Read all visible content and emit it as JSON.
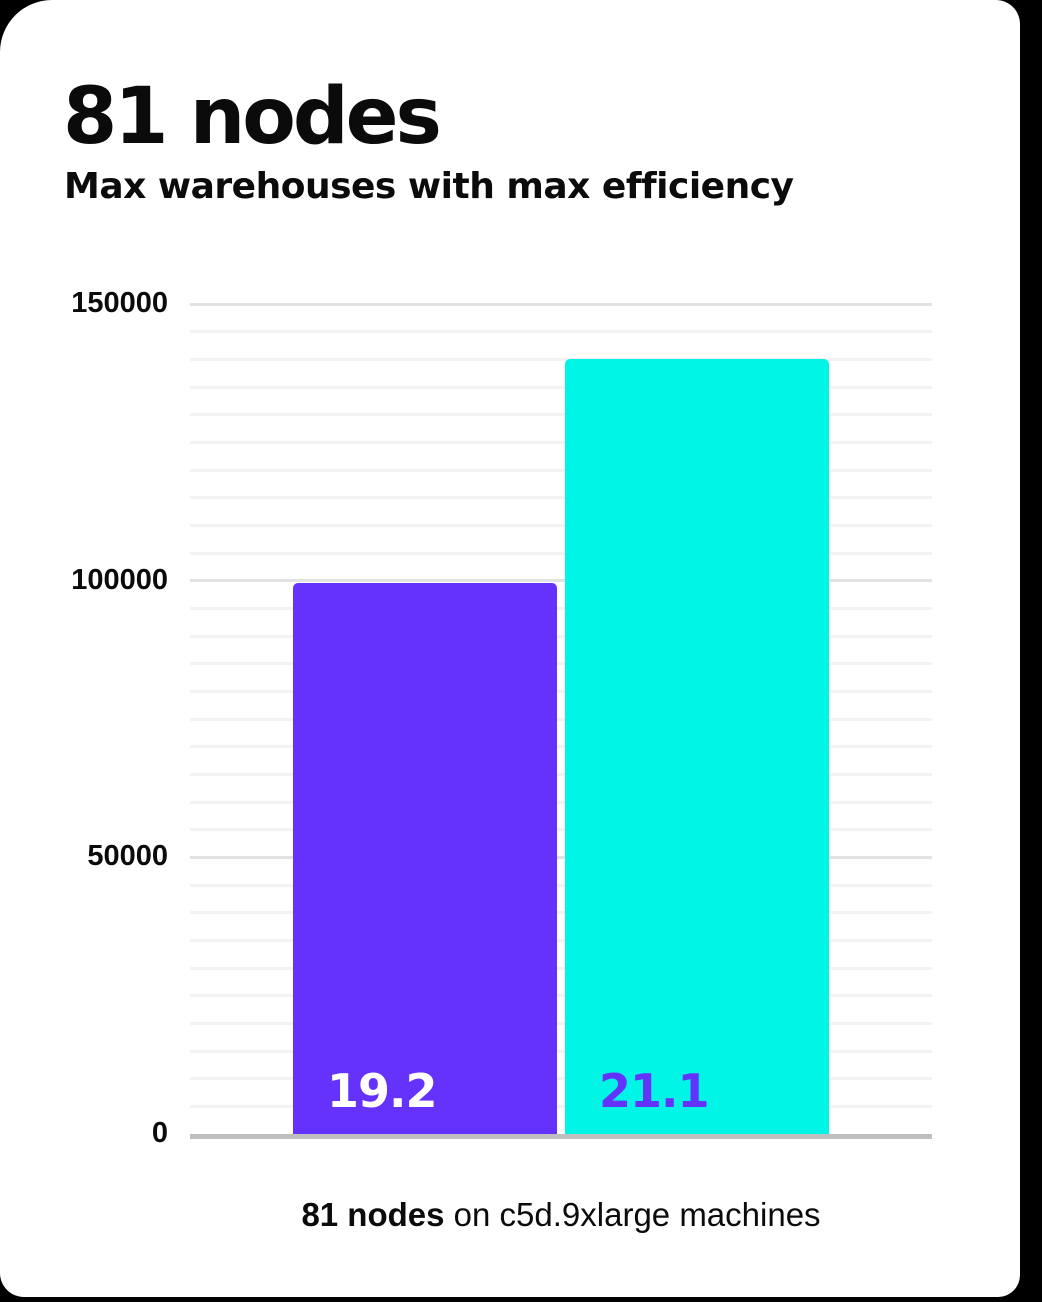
{
  "page": {
    "background": "#000000",
    "card_background": "#FFFFFF"
  },
  "card": {
    "title": "81 nodes",
    "subtitle": "Max warehouses with max efficiency",
    "caption": {
      "bold": "81 nodes",
      "rest": " on c5d.9xlarge machines"
    }
  },
  "chart_data": {
    "type": "bar",
    "title": "81 nodes",
    "subtitle": "Max warehouses with max efficiency",
    "caption": "81 nodes on c5d.9xlarge machines",
    "categories": [
      "19.2",
      "21.1"
    ],
    "values": [
      99500,
      140000
    ],
    "xlabel": "",
    "ylabel": "",
    "ylim": [
      0,
      150000
    ],
    "ytick_major": 50000,
    "ytick_minor": 5000,
    "ytick_labels": [
      "150000",
      "100000",
      "50000",
      "0"
    ],
    "grid": "horizontal, minor lines every 5000, major lines every 50000",
    "legend": "none",
    "value_labels_inside_bars": true,
    "bars": [
      {
        "label": "19.2",
        "value": 99500,
        "fill": "#6432FB",
        "label_color": "#FFFFFF"
      },
      {
        "label": "21.1",
        "value": 140000,
        "fill": "#00F5E6",
        "label_color": "#6432FB"
      }
    ],
    "axis_line_color": "#BFBFBF",
    "gridline_major_color": "#E2E2E2",
    "gridline_minor_color": "#F2F2F2",
    "text_color": "#0B0B0B"
  }
}
